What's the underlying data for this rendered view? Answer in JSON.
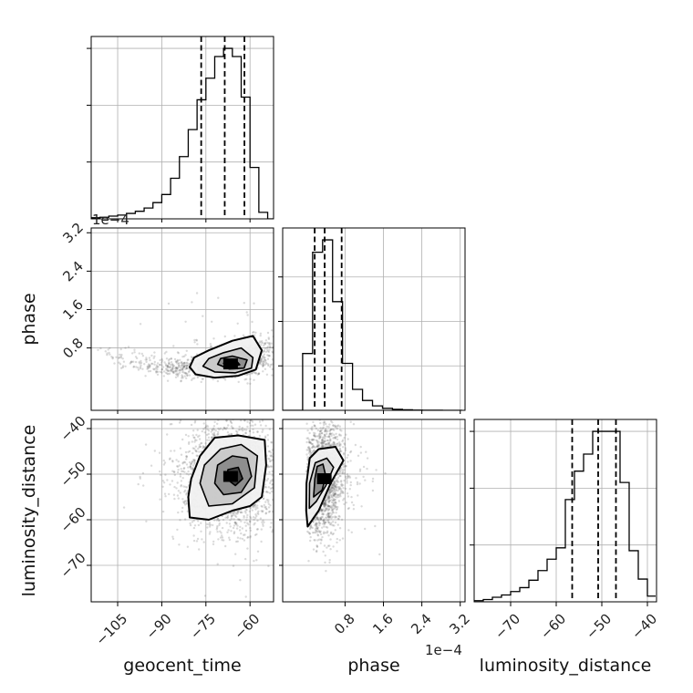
{
  "chart_data": {
    "type": "corner",
    "parameters": [
      "geocent_time",
      "phase",
      "luminosity_distance"
    ],
    "axes": {
      "geocent_time": {
        "label": "geocent_time",
        "range": [
          -114,
          -52
        ],
        "ticks": [
          -105,
          -90,
          -75,
          -60
        ],
        "tick_labels": [
          "−105",
          "−90",
          "−75",
          "−60"
        ]
      },
      "phase": {
        "label": "phase",
        "range": [
          -5e-05,
          0.00033
        ],
        "ticks": [
          8e-05,
          0.00016,
          0.00024,
          0.00032
        ],
        "tick_labels": [
          "0.8",
          "1.6",
          "2.4",
          "3.2"
        ],
        "offset_text": "1e−4"
      },
      "luminosity_distance": {
        "label": "luminosity_distance",
        "range": [
          -78,
          -38
        ],
        "ticks": [
          -70,
          -60,
          -50,
          -40
        ],
        "tick_labels": [
          "−70",
          "−60",
          "−50",
          "−40"
        ]
      }
    },
    "diagonal": [
      {
        "parameter": "geocent_time",
        "bin_edges": [
          -114,
          -111,
          -108,
          -105,
          -102,
          -99,
          -96,
          -93,
          -90,
          -87,
          -84,
          -81,
          -78,
          -75,
          -72,
          -69,
          -66,
          -63,
          -60,
          -57,
          -54,
          -52
        ],
        "counts": [
          2,
          3,
          5,
          7,
          10,
          14,
          20,
          30,
          45,
          75,
          115,
          165,
          220,
          260,
          300,
          315,
          300,
          225,
          95,
          12,
          0
        ],
        "quantiles": [
          -76.6,
          -68.6,
          -61.9
        ],
        "y_ticks": [
          105,
          210,
          315
        ]
      },
      {
        "parameter": "phase",
        "bin_edges": [
          -5e-05,
          -2.92e-05,
          -8.4e-06,
          1.24e-05,
          3.32e-05,
          5.4e-05,
          7.48e-05,
          9.56e-05,
          0.0001164,
          0.0001372,
          0.000158,
          0.0001788,
          0.0001996,
          0.0002204,
          0.0002412,
          0.000262,
          0.0002828,
          0.0003036,
          0.0003244
        ],
        "counts": [
          0,
          0,
          230,
          640,
          690,
          440,
          190,
          85,
          40,
          18,
          8,
          4,
          2,
          1,
          0.5,
          0.3,
          0.1,
          0
        ],
        "quantiles": [
          1.67e-05,
          3.75e-05,
          7.29e-05
        ],
        "y_ticks": [
          180,
          360,
          540
        ]
      },
      {
        "parameter": "luminosity_distance",
        "bin_edges": [
          -78,
          -76,
          -74,
          -72,
          -70,
          -68,
          -66,
          -64,
          -62,
          -60,
          -58,
          -56,
          -54,
          -52,
          -50,
          -48,
          -46,
          -44,
          -42,
          -40,
          -38.2
        ],
        "counts": [
          2,
          4,
          8,
          12,
          18,
          25,
          38,
          55,
          75,
          95,
          180,
          230,
          260,
          300,
          300,
          300,
          210,
          90,
          40,
          10
        ],
        "quantiles": [
          -56.5,
          -50.8,
          -46.9
        ],
        "y_ticks": [
          100,
          200,
          300
        ]
      }
    ],
    "pairs": [
      {
        "x": "geocent_time",
        "y": "phase",
        "center": [
          -66.6,
          4.67e-05
        ],
        "contour_levels": [
          [
            [
              -80.5,
              4e-05
            ],
            [
              -78.5,
              2.5e-05
            ],
            [
              -72,
              1.8e-05
            ],
            [
              -64,
              2.2e-05
            ],
            [
              -58,
              3.5e-05
            ],
            [
              -56,
              7.5e-05
            ],
            [
              -59,
              0.000105
            ],
            [
              -66,
              9.5e-05
            ],
            [
              -74,
              7.5e-05
            ],
            [
              -79,
              6e-05
            ]
          ],
          [
            [
              -76,
              4.2e-05
            ],
            [
              -72,
              3e-05
            ],
            [
              -65,
              2.8e-05
            ],
            [
              -59.5,
              3.8e-05
            ],
            [
              -59,
              6e-05
            ],
            [
              -63,
              8e-05
            ],
            [
              -69,
              7e-05
            ],
            [
              -74,
              5.8e-05
            ]
          ],
          [
            [
              -71,
              4.6e-05
            ],
            [
              -67,
              3.6e-05
            ],
            [
              -62,
              3.8e-05
            ],
            [
              -61,
              5.5e-05
            ],
            [
              -66,
              6.3e-05
            ],
            [
              -70,
              5.8e-05
            ]
          ],
          [
            [
              -69,
              4.8e-05
            ],
            [
              -66,
              4.2e-05
            ],
            [
              -63.5,
              4.5e-05
            ],
            [
              -64.5,
              5.2e-05
            ],
            [
              -67.5,
              5.4e-05
            ]
          ]
        ]
      },
      {
        "x": "geocent_time",
        "y": "luminosity_distance",
        "center": [
          -66.6,
          -50.5
        ],
        "contour_levels": [
          [
            [
              -81,
              -55
            ],
            [
              -80.5,
              -59.5
            ],
            [
              -74,
              -60
            ],
            [
              -66,
              -58
            ],
            [
              -60,
              -57
            ],
            [
              -56,
              -55
            ],
            [
              -54.5,
              -48
            ],
            [
              -55,
              -42.5
            ],
            [
              -64,
              -41.5
            ],
            [
              -72,
              -42
            ],
            [
              -77,
              -46
            ],
            [
              -80,
              -51
            ]
          ],
          [
            [
              -77,
              -52
            ],
            [
              -74,
              -57
            ],
            [
              -66,
              -56.5
            ],
            [
              -58.5,
              -53
            ],
            [
              -57.5,
              -46
            ],
            [
              -63,
              -43.5
            ],
            [
              -70,
              -44.5
            ],
            [
              -75.5,
              -48
            ]
          ],
          [
            [
              -72,
              -52
            ],
            [
              -69,
              -54.5
            ],
            [
              -63,
              -54
            ],
            [
              -59.5,
              -50.5
            ],
            [
              -61,
              -46.5
            ],
            [
              -66,
              -46
            ],
            [
              -71,
              -48
            ]
          ],
          [
            [
              -68,
              -51
            ],
            [
              -65,
              -52.5
            ],
            [
              -62.5,
              -51
            ],
            [
              -64,
              -48.5
            ],
            [
              -67.5,
              -49
            ]
          ]
        ]
      },
      {
        "x": "phase",
        "y": "luminosity_distance",
        "center": [
          3.67e-05,
          -51
        ],
        "contour_levels": [
          [
            [
              -5e-07,
              -52
            ],
            [
              -1e-06,
              -58
            ],
            [
              2e-06,
              -61.5
            ],
            [
              2.5e-05,
              -58
            ],
            [
              5e-05,
              -52
            ],
            [
              7.65e-05,
              -47
            ],
            [
              6e-05,
              -44
            ],
            [
              2.5e-05,
              -44.5
            ],
            [
              6.5e-06,
              -46.5
            ]
          ],
          [
            [
              6e-06,
              -52
            ],
            [
              5.5e-06,
              -57.5
            ],
            [
              2e-05,
              -56
            ],
            [
              4e-05,
              -52.5
            ],
            [
              5.6e-05,
              -48.5
            ],
            [
              4.2e-05,
              -46.5
            ],
            [
              1.8e-05,
              -47.5
            ]
          ],
          [
            [
              1.7e-05,
              -51
            ],
            [
              1.45e-05,
              -55
            ],
            [
              3.2e-05,
              -53.5
            ],
            [
              4e-05,
              -50.5
            ],
            [
              3.4e-05,
              -47.8
            ],
            [
              2.2e-05,
              -48.3
            ]
          ]
        ]
      }
    ]
  }
}
